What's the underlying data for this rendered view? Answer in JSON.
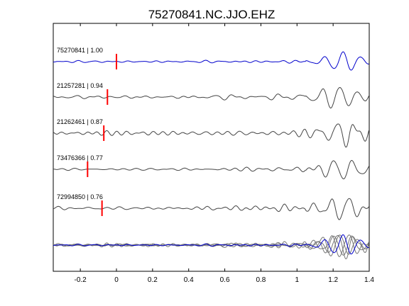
{
  "chart_data": {
    "type": "line",
    "title": "75270841.NC.JJO.EHZ",
    "xlabel": "",
    "ylabel": "",
    "xlim": [
      -0.35,
      1.4
    ],
    "xticks": [
      -0.2,
      0,
      0.2,
      0.4,
      0.6,
      0.8,
      1,
      1.2,
      1.4
    ],
    "xtick_labels": [
      "-0.2",
      "0",
      "0.2",
      "0.4",
      "0.6",
      "0.8",
      "1",
      "1.2",
      "1.4"
    ],
    "grid": false,
    "colors": {
      "reference": "#0000cc",
      "other": "#444444",
      "pick": "#ff0000"
    },
    "traces": [
      {
        "label": "75270841 | 1.00",
        "pick": 0.0,
        "reference": true
      },
      {
        "label": "21257281 | 0.94",
        "pick": -0.05,
        "reference": false
      },
      {
        "label": "21262461 | 0.87",
        "pick": -0.07,
        "reference": false
      },
      {
        "label": "73476366 | 0.77",
        "pick": -0.16,
        "reference": false
      },
      {
        "label": "72994850 | 0.76",
        "pick": -0.08,
        "reference": false
      }
    ],
    "stack_label": ""
  }
}
